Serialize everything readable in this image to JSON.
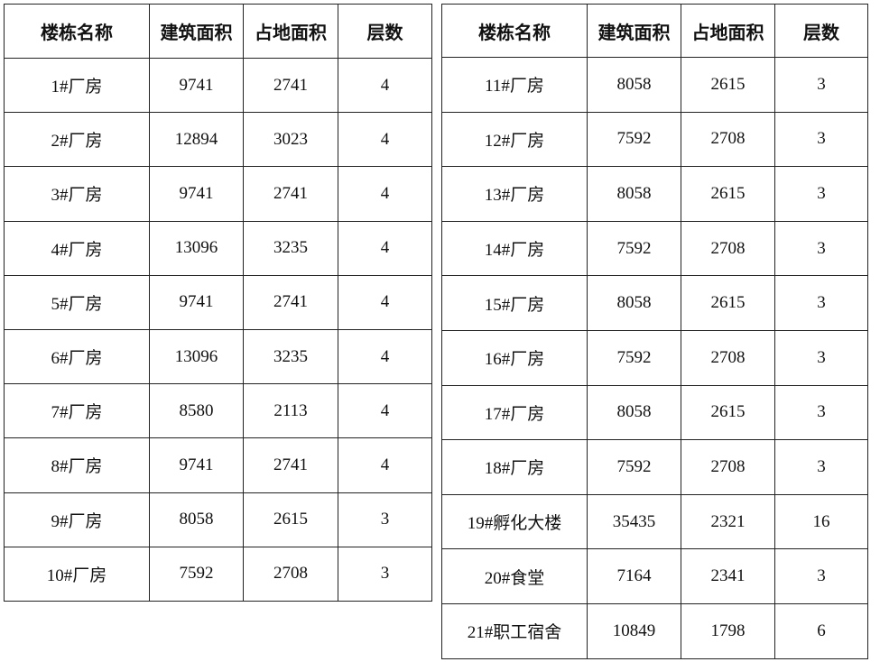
{
  "headers": [
    "楼栋名称",
    "建筑面积",
    "占地面积",
    "层数"
  ],
  "left_table": {
    "rows": [
      [
        "1#厂房",
        "9741",
        "2741",
        "4"
      ],
      [
        "2#厂房",
        "12894",
        "3023",
        "4"
      ],
      [
        "3#厂房",
        "9741",
        "2741",
        "4"
      ],
      [
        "4#厂房",
        "13096",
        "3235",
        "4"
      ],
      [
        "5#厂房",
        "9741",
        "2741",
        "4"
      ],
      [
        "6#厂房",
        "13096",
        "3235",
        "4"
      ],
      [
        "7#厂房",
        "8580",
        "2113",
        "4"
      ],
      [
        "8#厂房",
        "9741",
        "2741",
        "4"
      ],
      [
        "9#厂房",
        "8058",
        "2615",
        "3"
      ],
      [
        "10#厂房",
        "7592",
        "2708",
        "3"
      ]
    ]
  },
  "right_table": {
    "rows": [
      [
        "11#厂房",
        "8058",
        "2615",
        "3"
      ],
      [
        "12#厂房",
        "7592",
        "2708",
        "3"
      ],
      [
        "13#厂房",
        "8058",
        "2615",
        "3"
      ],
      [
        "14#厂房",
        "7592",
        "2708",
        "3"
      ],
      [
        "15#厂房",
        "8058",
        "2615",
        "3"
      ],
      [
        "16#厂房",
        "7592",
        "2708",
        "3"
      ],
      [
        "17#厂房",
        "8058",
        "2615",
        "3"
      ],
      [
        "18#厂房",
        "7592",
        "2708",
        "3"
      ],
      [
        "19#孵化大楼",
        "35435",
        "2321",
        "16"
      ],
      [
        "20#食堂",
        "7164",
        "2341",
        "3"
      ],
      [
        "21#职工宿舍",
        "10849",
        "1798",
        "6"
      ]
    ]
  }
}
